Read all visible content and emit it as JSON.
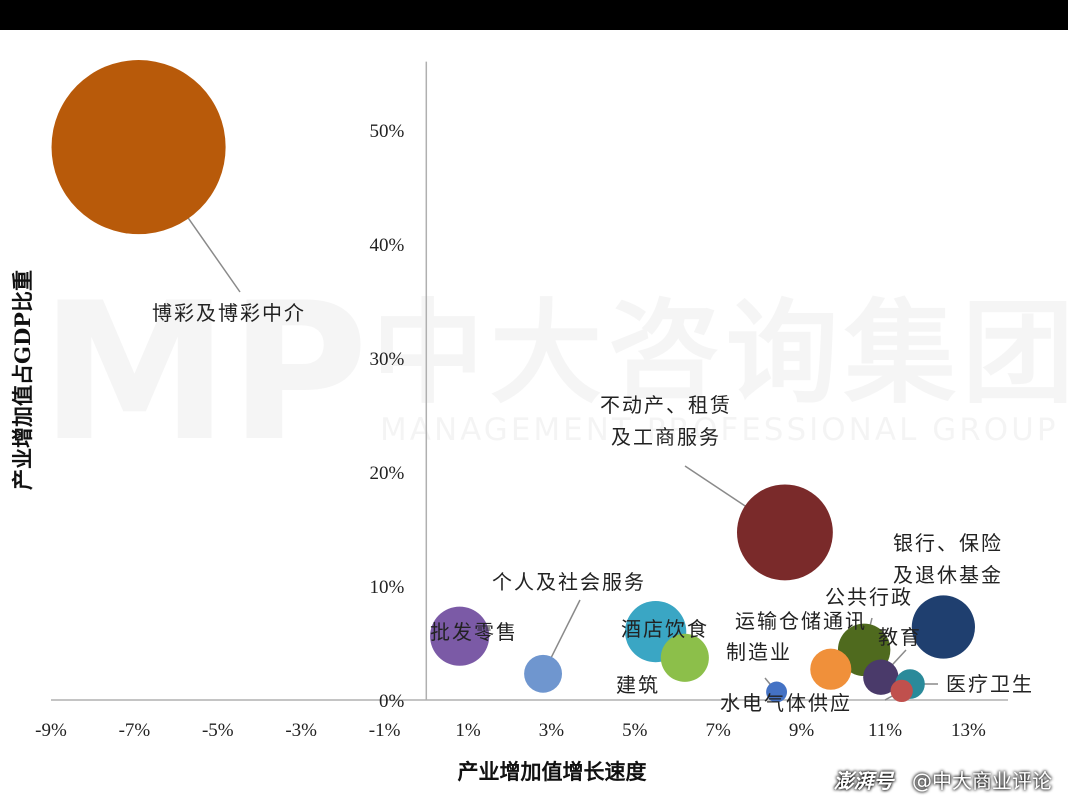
{
  "watermark": {
    "mark": "MP",
    "cn": "中大咨询集团",
    "en": "MANAGEMENT PROFESSIONAL GROUP"
  },
  "credit": {
    "logo": "澎湃号",
    "source": "@中大商业评论"
  },
  "chart_data": {
    "type": "scatter",
    "title": "",
    "xlabel": "产业增加值增长速度",
    "ylabel": "产业增加值占GDP比重",
    "xlim": [
      -9,
      15
    ],
    "ylim": [
      0,
      56
    ],
    "x_ticks": [
      -9,
      -7,
      -5,
      -3,
      -1,
      1,
      3,
      5,
      7,
      9,
      11,
      13
    ],
    "x_tick_labels": [
      "-9%",
      "-7%",
      "-5%",
      "-3%",
      "-1%",
      "1%",
      "3%",
      "5%",
      "7%",
      "9%",
      "11%",
      "13%"
    ],
    "y_ticks": [
      0,
      10,
      20,
      30,
      40,
      50
    ],
    "y_tick_labels": [
      "0%",
      "10%",
      "20%",
      "30%",
      "40%",
      "50%"
    ],
    "grid": false,
    "bubble_size_by": "y",
    "points": [
      {
        "label": "博彩及博彩中介",
        "x": -6.9,
        "y": 48.5,
        "color": "#b85a0a"
      },
      {
        "label": "不动产、租赁及工商服务",
        "x": 8.6,
        "y": 14.7,
        "color": "#7a2a2a"
      },
      {
        "label": "银行、保险及退休基金",
        "x": 12.4,
        "y": 6.4,
        "color": "#1f3f6f"
      },
      {
        "label": "批发零售",
        "x": 0.8,
        "y": 5.6,
        "color": "#7b5aa6"
      },
      {
        "label": "酒店饮食",
        "x": 5.5,
        "y": 6.0,
        "color": "#3aa6c4"
      },
      {
        "label": "建筑",
        "x": 6.2,
        "y": 3.7,
        "color": "#8cbf4a"
      },
      {
        "label": "个人及社会服务",
        "x": 2.8,
        "y": 2.3,
        "color": "#6f96cf"
      },
      {
        "label": "公共行政",
        "x": 10.5,
        "y": 4.4,
        "color": "#4f6a1e"
      },
      {
        "label": "运输仓储通讯",
        "x": 9.7,
        "y": 2.7,
        "color": "#f0903a"
      },
      {
        "label": "教育",
        "x": 10.9,
        "y": 2.0,
        "color": "#4a3a6a"
      },
      {
        "label": "医疗卫生",
        "x": 11.6,
        "y": 1.4,
        "color": "#2a8a9a"
      },
      {
        "label": "水电气体供应",
        "x": 11.4,
        "y": 0.8,
        "color": "#c0504d"
      },
      {
        "label": "制造业",
        "x": 8.4,
        "y": 0.7,
        "color": "#4472c4"
      }
    ]
  }
}
